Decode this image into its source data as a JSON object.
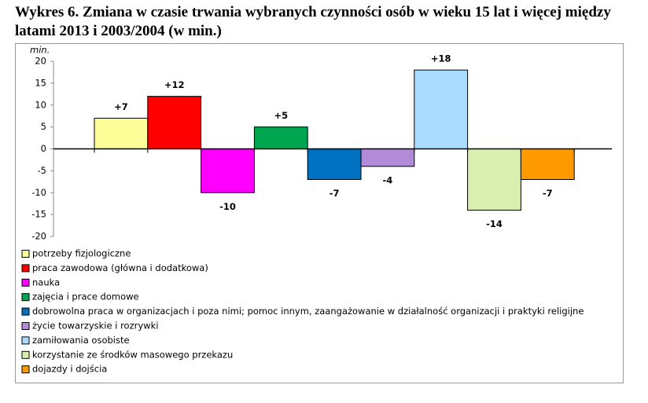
{
  "chart_data": {
    "type": "bar",
    "title": "Wykres 6. Zmiana w czasie trwania wybranych czynności osób w wieku 15 lat i więcej między latami 2013 i 2003/2004 (w min.)",
    "y_label": "min.",
    "ylim": [
      -20,
      20
    ],
    "yticks": [
      -20,
      -15,
      -10,
      -5,
      0,
      5,
      10,
      15,
      20
    ],
    "grid": false,
    "series": [
      {
        "name": "potrzeby fizjologiczne",
        "color": "#ffff99",
        "values": [
          7
        ],
        "value_labels": [
          "+7"
        ]
      },
      {
        "name": "praca zawodowa (główna i dodatkowa)",
        "color": "#ff0000",
        "values": [
          12
        ],
        "value_labels": [
          "+12"
        ]
      },
      {
        "name": "nauka",
        "color": "#ff00ff",
        "values": [
          -10
        ],
        "value_labels": [
          "-10"
        ]
      },
      {
        "name": "zajęcia i prace domowe",
        "color": "#00a550",
        "values": [
          5
        ],
        "value_labels": [
          "+5"
        ]
      },
      {
        "name": "dobrowolna praca w organizacjach i poza nimi; pomoc innym, zaangażowanie w działalność organizacji i praktyki religijne",
        "color": "#0070c0",
        "values": [
          -7
        ],
        "value_labels": [
          "-7"
        ]
      },
      {
        "name": "życie towarzyskie i rozrywki",
        "color": "#b18ad8",
        "values": [
          -4
        ],
        "value_labels": [
          "-4"
        ]
      },
      {
        "name": "zamiłowania osobiste",
        "color": "#aadcff",
        "values": [
          18
        ],
        "value_labels": [
          "+18"
        ]
      },
      {
        "name": "korzystanie ze środków masowego przekazu",
        "color": "#d8efb0",
        "values": [
          -14
        ],
        "value_labels": [
          "-14"
        ]
      },
      {
        "name": "dojazdy i dojścia",
        "color": "#ff9900",
        "values": [
          -7
        ],
        "value_labels": [
          "-7"
        ]
      }
    ]
  }
}
